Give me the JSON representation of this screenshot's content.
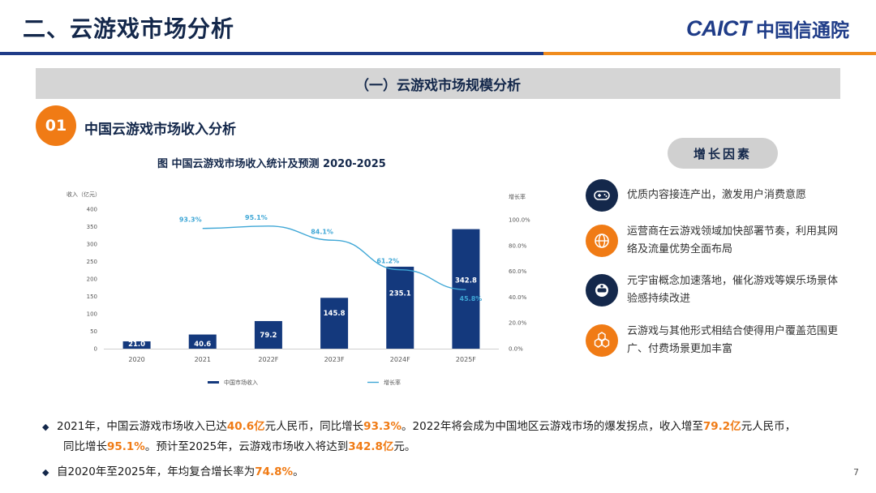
{
  "header": {
    "title": "二、云游戏市场分析",
    "logo_en": "CAICT",
    "logo_zh": "中国信通院"
  },
  "band_title": "（一）云游戏市场规模分析",
  "section": {
    "number": "01",
    "title": "中国云游戏市场收入分析"
  },
  "chart_data": {
    "type": "bar",
    "title": "图  中国云游戏市场收入统计及预测 2020-2025",
    "ylabel": "收入（亿元）",
    "y2label": "增长率",
    "categories": [
      "2020",
      "2021",
      "2022F",
      "2023F",
      "2024F",
      "2025F"
    ],
    "ylim": [
      0,
      400
    ],
    "yticks": [
      "400",
      "350",
      "300",
      "250",
      "200",
      "150",
      "100",
      "50",
      "0"
    ],
    "y2lim": [
      0,
      100
    ],
    "y2ticks": [
      "100.0%",
      "80.0%",
      "60.0%",
      "40.0%",
      "20.0%",
      "0.0%"
    ],
    "series": [
      {
        "name": "中国市场收入",
        "type": "bar",
        "color": "#14397d",
        "values": [
          21.0,
          40.6,
          79.2,
          145.8,
          235.1,
          342.8
        ],
        "labels": [
          "21.0",
          "40.6",
          "79.2",
          "145.8",
          "235.1",
          "342.8"
        ]
      },
      {
        "name": "增长率",
        "type": "line",
        "color": "#3fa7d6",
        "values": [
          null,
          93.3,
          95.1,
          84.1,
          61.2,
          45.8
        ],
        "labels": [
          "",
          "93.3%",
          "95.1%",
          "84.1%",
          "61.2%",
          "45.8%"
        ]
      }
    ],
    "legend": "bottom"
  },
  "factors": {
    "title": "增长因素",
    "items": [
      {
        "icon": "gamepad-icon",
        "color": "#14284b",
        "text": "优质内容接连产出，激发用户消费意愿"
      },
      {
        "icon": "globe-icon",
        "color": "#f07b15",
        "text": "运营商在云游戏领域加快部署节奏，利用其网络及流量优势全面布局"
      },
      {
        "icon": "vr-headset-icon",
        "color": "#14284b",
        "text": "元宇宙概念加速落地，催化游戏等娱乐场景体验感持续改进"
      },
      {
        "icon": "hexagon-cluster-icon",
        "color": "#f07b15",
        "text": "云游戏与其他形式相结合使得用户覆盖范围更广、付费场景更加丰富"
      }
    ]
  },
  "bullets": {
    "b1": {
      "p1": "2021年，中国云游戏市场收入已达",
      "h1": "40.6亿",
      "p2": "元人民币，同比增长",
      "h2": "93.3%",
      "p3": "。2022年将会成为中国地区云游戏市场的爆发拐点，收入增至",
      "h3": "79.2亿",
      "p4": "元人民币，",
      "p5": "同比增长",
      "h4": "95.1%",
      "p6": "。预计至2025年，云游戏市场收入将达到",
      "h5": "342.8亿",
      "p7": "元。"
    },
    "b2": {
      "p1": "自2020年至2025年，年均复合增长率为",
      "h1": "74.8%",
      "p2": "。"
    }
  },
  "page_number": "7"
}
